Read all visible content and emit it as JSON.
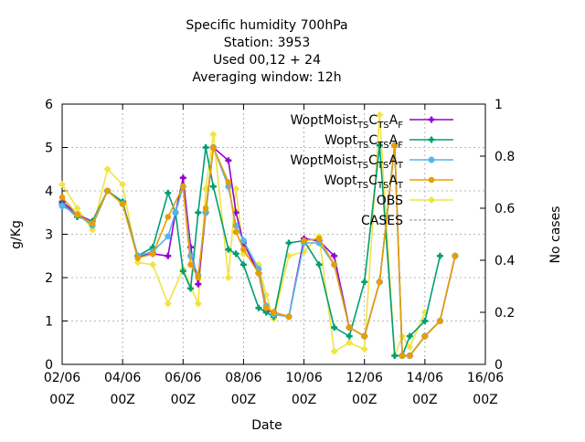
{
  "chart_data": {
    "type": "line",
    "title_lines": [
      "Specific humidity 700hPa",
      "Station:     3953",
      "Used  00,12  + 24",
      "Averaging window: 12h"
    ],
    "xlabel": "Date",
    "ylabel": "g/Kg",
    "y2label": "No cases",
    "xlim": [
      0,
      28
    ],
    "ylim": [
      0,
      6
    ],
    "y2lim": [
      0,
      1
    ],
    "x_unit": "half-days from 02/06 00Z",
    "x_ticks": [
      {
        "x": 0,
        "l1": "02/06",
        "l2": "00Z"
      },
      {
        "x": 4,
        "l1": "04/06",
        "l2": "00Z"
      },
      {
        "x": 8,
        "l1": "06/06",
        "l2": "00Z"
      },
      {
        "x": 12,
        "l1": "08/06",
        "l2": "00Z"
      },
      {
        "x": 16,
        "l1": "10/06",
        "l2": "00Z"
      },
      {
        "x": 20,
        "l1": "12/06",
        "l2": "00Z"
      },
      {
        "x": 24,
        "l1": "14/06",
        "l2": "00Z"
      },
      {
        "x": 28,
        "l1": "16/06",
        "l2": "00Z"
      }
    ],
    "y_ticks": [
      0,
      1,
      2,
      3,
      4,
      5,
      6
    ],
    "y2_ticks": [
      0,
      0.2,
      0.4,
      0.6,
      0.8,
      1
    ],
    "grid": true,
    "legend_position": "top-right",
    "series": [
      {
        "name": "WoptMoist",
        "sub1": "TS",
        "mid": "C",
        "sub2": "TS",
        "tail": "A",
        "sub3": "F",
        "color": "#9400d3",
        "marker": "plus",
        "x": [
          0,
          1,
          2,
          3,
          4,
          5,
          6,
          7,
          7.5,
          8,
          8.5,
          9,
          9.5,
          10,
          11,
          11.5,
          12,
          13,
          13.5,
          14,
          15,
          16,
          17,
          18,
          19,
          20,
          21,
          22,
          22.5,
          23,
          24,
          25,
          26,
          27
        ],
        "y": [
          3.75,
          3.45,
          3.3,
          4.0,
          3.75,
          2.5,
          2.55,
          2.5,
          3.5,
          4.3,
          2.7,
          1.85,
          3.5,
          5.0,
          4.7,
          3.5,
          2.8,
          2.1,
          1.25,
          1.2,
          1.1,
          2.9,
          2.85,
          2.5,
          0.85,
          0.65,
          1.9,
          5.05,
          0.2,
          0.2,
          0.65,
          1.0,
          2.5,
          null
        ]
      },
      {
        "name": "Wopt",
        "sub1": "TS",
        "mid": "C",
        "sub2": "TS",
        "tail": "A",
        "sub3": "F",
        "color": "#009e73",
        "marker": "plus",
        "x": [
          0,
          1,
          2,
          3,
          4,
          5,
          6,
          7,
          7.5,
          8,
          8.5,
          9,
          9.5,
          10,
          11,
          11.5,
          12,
          13,
          13.5,
          14,
          15,
          16,
          17,
          18,
          19,
          20,
          21,
          22,
          22.5,
          23,
          24,
          25,
          26,
          27
        ],
        "y": [
          3.7,
          3.4,
          3.3,
          4.0,
          3.75,
          2.5,
          2.7,
          3.95,
          3.5,
          2.15,
          1.75,
          3.5,
          5.0,
          4.1,
          2.65,
          2.55,
          2.3,
          1.3,
          1.2,
          1.1,
          2.8,
          2.85,
          2.3,
          0.85,
          0.65,
          1.9,
          5.05,
          0.2,
          0.2,
          0.65,
          1.0,
          2.5,
          null,
          null
        ]
      },
      {
        "name": "WoptMoist",
        "sub1": "TS",
        "mid": "C",
        "sub2": "TS",
        "tail": "A",
        "sub3": "T",
        "color": "#56b4e9",
        "marker": "star",
        "x": [
          0,
          1,
          2,
          3,
          4,
          5,
          6,
          7,
          7.5,
          8,
          8.5,
          9,
          9.5,
          10,
          11,
          11.5,
          12,
          13,
          13.5,
          14,
          15,
          16,
          17,
          18,
          19,
          20,
          21,
          22,
          22.5,
          23,
          24,
          25,
          26,
          27
        ],
        "y": [
          3.65,
          3.45,
          3.2,
          4.0,
          3.7,
          2.5,
          2.6,
          2.95,
          3.5,
          4.1,
          2.5,
          2.05,
          3.5,
          5.0,
          4.1,
          3.2,
          2.85,
          2.2,
          1.35,
          1.15,
          1.1,
          2.8,
          2.8,
          2.3,
          0.85,
          0.65,
          1.9,
          5.05,
          0.2,
          0.2,
          0.65,
          1.0,
          2.5,
          null
        ]
      },
      {
        "name": "Wopt",
        "sub1": "TS",
        "mid": "C",
        "sub2": "TS",
        "tail": "A",
        "sub3": "T",
        "color": "#e69f00",
        "marker": "dot",
        "x": [
          0,
          1,
          2,
          3,
          4,
          5,
          6,
          7,
          8,
          8.5,
          9,
          9.5,
          10,
          11,
          11.5,
          12,
          13,
          13.5,
          14,
          15,
          15.5,
          16,
          17,
          18,
          19,
          20,
          21,
          22,
          22.5,
          23,
          24,
          25,
          26,
          27
        ],
        "y": [
          3.85,
          3.45,
          3.25,
          4.0,
          3.7,
          2.45,
          2.55,
          3.4,
          4.1,
          2.3,
          2.0,
          3.6,
          5.0,
          4.2,
          3.05,
          2.65,
          2.1,
          1.3,
          1.2,
          1.1,
          null,
          2.85,
          2.9,
          2.3,
          0.85,
          0.65,
          1.9,
          5.05,
          0.2,
          0.2,
          0.65,
          1.0,
          2.5,
          null
        ]
      },
      {
        "name": "OBS",
        "color": "#f0e442",
        "marker": "diamond",
        "x": [
          0,
          1,
          2,
          3,
          4,
          5,
          6,
          7,
          8,
          9,
          9.5,
          10,
          11,
          11.5,
          12,
          13,
          13.5,
          14,
          15,
          16,
          17,
          18,
          19,
          20,
          21,
          22,
          22.5,
          23,
          24,
          25,
          26,
          27
        ],
        "y": [
          4.15,
          3.6,
          3.1,
          4.5,
          4.15,
          2.35,
          2.3,
          1.4,
          2.2,
          1.4,
          4.05,
          5.3,
          2.0,
          4.05,
          2.55,
          2.3,
          1.6,
          1.05,
          2.5,
          2.6,
          2.95,
          0.3,
          0.5,
          0.35,
          5.75,
          0.2,
          0.65,
          0.4,
          1.2,
          null,
          null,
          null
        ]
      }
    ],
    "cases_series": {
      "name": "CASES",
      "color": "#888888",
      "style": "dashed"
    }
  }
}
